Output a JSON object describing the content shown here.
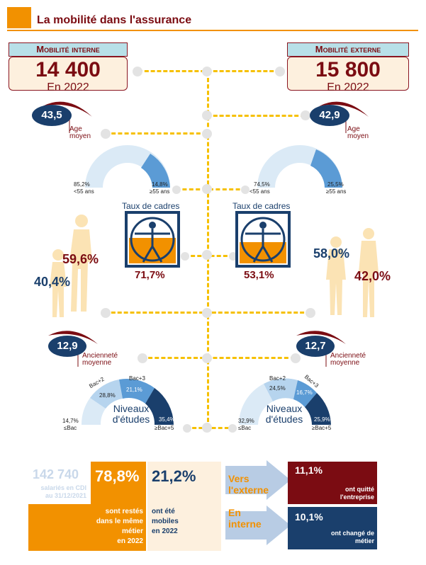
{
  "title": "La mobilité dans l'assurance",
  "interne": {
    "label": "Mobilité interne",
    "count": "14 400",
    "year": "En 2022",
    "age": "43,5",
    "age_label_1": "Age",
    "age_label_2": "moyen",
    "donut_left_pct": "85,2%",
    "donut_left_label": "<55 ans",
    "donut_right_pct": "14,8%",
    "donut_right_label": "≥55 ans",
    "taux_label": "Taux de cadres",
    "taux_value": "71,7%",
    "women_pct": "59,6%",
    "men_pct": "40,4%",
    "anciennete": "12,9",
    "anc_label_1": "Ancienneté",
    "anc_label_2": "moyenne",
    "niveaux": {
      "title_1": "Niveaux",
      "title_2": "d'études",
      "bac": "14,7%",
      "bac_label": "≤Bac",
      "bac2": "28,8%",
      "bac2_label": "Bac+2",
      "bac3": "21,1%",
      "bac3_label": "Bac+3",
      "bac5": "35,4%",
      "bac5_label": "≥Bac+5"
    }
  },
  "externe": {
    "label": "Mobilité externe",
    "count": "15 800",
    "year": "En 2022",
    "age": "42,9",
    "age_label_1": "Age",
    "age_label_2": "moyen",
    "donut_left_pct": "74,5%",
    "donut_left_label": "<55 ans",
    "donut_right_pct": "25,5%",
    "donut_right_label": "≥55 ans",
    "taux_label": "Taux de cadres",
    "taux_value": "53,1%",
    "women_pct": "58,0%",
    "men_pct": "42,0%",
    "anciennete": "12,7",
    "anc_label_1": "Ancienneté",
    "anc_label_2": "moyenne",
    "niveaux": {
      "title_1": "Niveaux",
      "title_2": "d'études",
      "bac": "32,9%",
      "bac_label": "≤Bac",
      "bac2": "24,5%",
      "bac2_label": "Bac+2",
      "bac3": "16,7%",
      "bac3_label": "Bac+3",
      "bac5": "25,9%",
      "bac5_label": "≥Bac+5"
    }
  },
  "bottom": {
    "total": "142 740",
    "total_label_1": "salariés en CDI",
    "total_label_2": "au 31/12/2021",
    "stayed_pct": "78,8%",
    "stayed_label": [
      "sont restés",
      "dans le même",
      "métier",
      "en 2022"
    ],
    "mobile_pct": "21,2%",
    "mobile_label": [
      "ont été",
      "mobiles",
      "en 2022"
    ],
    "vers_externe": [
      "Vers",
      "l'externe"
    ],
    "en_interne": [
      "En",
      "interne"
    ],
    "quit_pct": "11,1%",
    "quit_label": [
      "ont quitté",
      "l'entreprise"
    ],
    "changed_pct": "10,1%",
    "changed_label": [
      "ont changé de",
      "métier"
    ]
  },
  "colors": {
    "orange": "#f29100",
    "dark_red": "#7b0c12",
    "navy": "#1a3f6c",
    "light_blue": "#d8ebf7",
    "mid_blue": "#5b9bd5",
    "yellow_dash": "#f6c000",
    "cream": "#fdf0de"
  }
}
